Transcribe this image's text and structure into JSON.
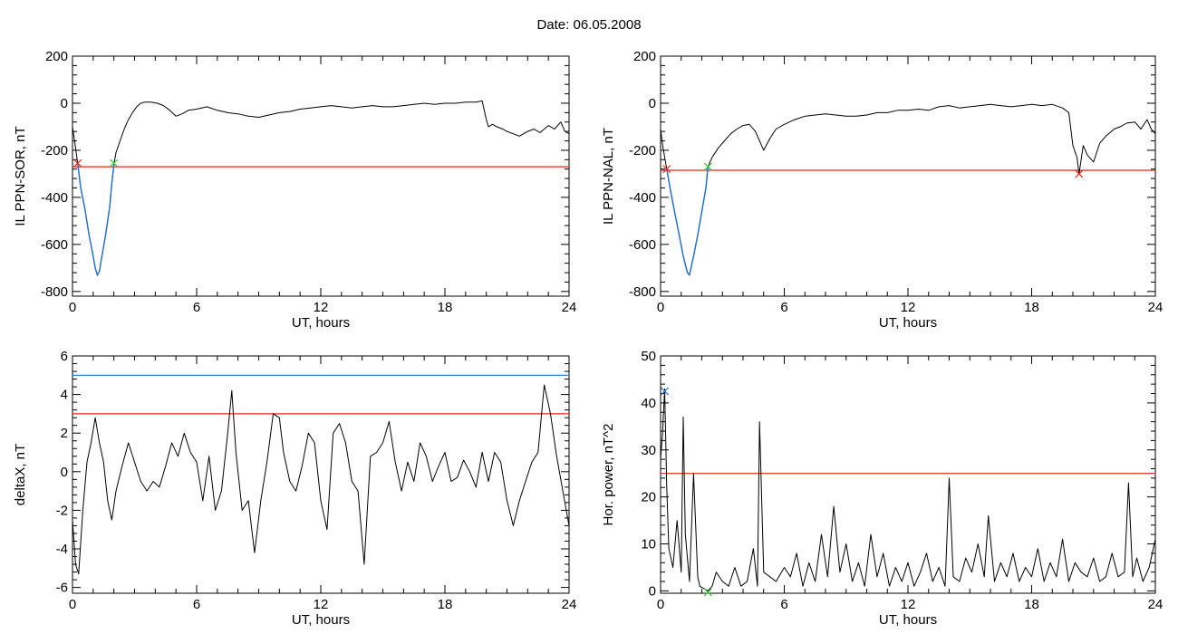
{
  "figure": {
    "title": "Date:  06.05.2008"
  },
  "colors": {
    "trace": "#000000",
    "threshold": "#e8251f",
    "blue": "#1f6fd1",
    "green": "#33cc33",
    "background": "#ffffff"
  },
  "chart_data": [
    {
      "type": "line",
      "ylabel": "IL PPN-SOR, nT",
      "xlabel": "UT, hours",
      "xlim": [
        0,
        24
      ],
      "ylim": [
        -820,
        200
      ],
      "xticks": [
        0,
        6,
        12,
        18,
        24
      ],
      "xtick_labels": [
        "0",
        "6",
        "12",
        "18",
        "24"
      ],
      "yticks": [
        200,
        0,
        -200,
        -400,
        -600,
        -800
      ],
      "ytick_labels": [
        "200",
        "0",
        "-200",
        "-400",
        "-600",
        "-800"
      ],
      "grid": false,
      "threshold": {
        "y": -270,
        "color": "#e8251f"
      },
      "highlight": {
        "x_range": [
          0.25,
          2.0
        ],
        "color": "#1f6fd1"
      },
      "markers": [
        {
          "x": 0.25,
          "y": -255,
          "color": "#e8251f"
        },
        {
          "x": 2.0,
          "y": -255,
          "color": "#33cc33"
        }
      ],
      "series": [
        {
          "x": [
            0,
            0.1,
            0.25,
            0.4,
            0.6,
            0.8,
            1.0,
            1.1,
            1.2,
            1.3,
            1.4,
            1.5,
            1.6,
            1.7,
            1.8,
            1.9,
            2.0,
            2.1,
            2.3,
            2.5,
            2.7,
            2.9,
            3.1,
            3.3,
            3.5,
            3.8,
            4.1,
            4.4,
            4.7,
            5.0,
            5.3,
            5.6,
            6.0,
            6.5,
            7.0,
            7.5,
            8.0,
            8.5,
            9.0,
            9.5,
            10.0,
            10.5,
            11.0,
            11.5,
            12.0,
            12.5,
            13.0,
            13.5,
            14.0,
            14.5,
            15.0,
            15.5,
            16.0,
            16.5,
            17.0,
            17.5,
            18.0,
            18.5,
            19.0,
            19.5,
            19.8,
            20.0,
            20.1,
            20.3,
            20.5,
            20.8,
            21.0,
            21.3,
            21.6,
            22.0,
            22.3,
            22.6,
            23.0,
            23.3,
            23.6,
            23.8,
            24.0
          ],
          "y": [
            -100,
            -160,
            -255,
            -360,
            -450,
            -560,
            -650,
            -700,
            -730,
            -715,
            -660,
            -610,
            -560,
            -500,
            -440,
            -340,
            -260,
            -210,
            -160,
            -110,
            -70,
            -40,
            -15,
            0,
            5,
            5,
            0,
            -10,
            -30,
            -55,
            -45,
            -30,
            -25,
            -15,
            -30,
            -40,
            -45,
            -55,
            -60,
            -50,
            -40,
            -35,
            -25,
            -20,
            -15,
            -10,
            -15,
            -20,
            -15,
            -10,
            -15,
            -15,
            -10,
            -5,
            0,
            -5,
            0,
            0,
            5,
            5,
            10,
            -70,
            -100,
            -90,
            -100,
            -110,
            -120,
            -130,
            -140,
            -120,
            -110,
            -125,
            -95,
            -110,
            -80,
            -120,
            -130
          ]
        }
      ]
    },
    {
      "type": "line",
      "ylabel": "IL PPN-NAL, nT",
      "xlabel": "UT, hours",
      "xlim": [
        0,
        24
      ],
      "ylim": [
        -820,
        200
      ],
      "xticks": [
        0,
        6,
        12,
        18,
        24
      ],
      "xtick_labels": [
        "0",
        "6",
        "12",
        "18",
        "24"
      ],
      "yticks": [
        200,
        0,
        -200,
        -400,
        -600,
        -800
      ],
      "ytick_labels": [
        "200",
        "0",
        "-200",
        "-400",
        "-600",
        "-800"
      ],
      "grid": false,
      "threshold": {
        "y": -285,
        "color": "#e8251f"
      },
      "highlight": {
        "x_range": [
          0.3,
          2.3
        ],
        "color": "#1f6fd1"
      },
      "markers": [
        {
          "x": 0.3,
          "y": -280,
          "color": "#e8251f"
        },
        {
          "x": 2.3,
          "y": -270,
          "color": "#33cc33"
        },
        {
          "x": 20.3,
          "y": -300,
          "color": "#e8251f"
        }
      ],
      "series": [
        {
          "x": [
            0,
            0.1,
            0.3,
            0.5,
            0.7,
            0.9,
            1.1,
            1.3,
            1.4,
            1.5,
            1.6,
            1.8,
            2.0,
            2.2,
            2.3,
            2.5,
            2.8,
            3.1,
            3.4,
            3.7,
            4.0,
            4.3,
            4.6,
            5.0,
            5.3,
            5.6,
            6.0,
            6.5,
            7.0,
            7.5,
            8.0,
            8.5,
            9.0,
            9.5,
            10.0,
            10.5,
            11.0,
            11.5,
            12.0,
            12.5,
            13.0,
            13.5,
            14.0,
            14.5,
            15.0,
            15.5,
            16.0,
            16.5,
            17.0,
            17.5,
            18.0,
            18.5,
            19.0,
            19.5,
            19.8,
            20.0,
            20.2,
            20.3,
            20.5,
            20.7,
            21.0,
            21.3,
            21.6,
            22.0,
            22.3,
            22.6,
            23.0,
            23.3,
            23.6,
            23.8,
            24.0
          ],
          "y": [
            -110,
            -180,
            -280,
            -380,
            -470,
            -560,
            -650,
            -720,
            -730,
            -690,
            -650,
            -560,
            -460,
            -360,
            -270,
            -230,
            -190,
            -160,
            -130,
            -110,
            -95,
            -90,
            -120,
            -200,
            -150,
            -110,
            -90,
            -70,
            -55,
            -50,
            -45,
            -50,
            -55,
            -55,
            -50,
            -40,
            -40,
            -30,
            -30,
            -25,
            -30,
            -15,
            -10,
            -20,
            -15,
            -10,
            -5,
            -10,
            -15,
            -10,
            -5,
            -10,
            -5,
            -20,
            -40,
            -180,
            -230,
            -300,
            -180,
            -220,
            -250,
            -170,
            -140,
            -110,
            -100,
            -85,
            -80,
            -110,
            -70,
            -110,
            -130
          ]
        }
      ]
    },
    {
      "type": "line",
      "ylabel": "deltaX, nT",
      "xlabel": "UT, hours",
      "xlim": [
        0,
        24
      ],
      "ylim": [
        -6.3,
        6
      ],
      "xticks": [
        0,
        6,
        12,
        18,
        24
      ],
      "xtick_labels": [
        "0",
        "6",
        "12",
        "18",
        "24"
      ],
      "yticks": [
        6,
        4,
        2,
        0,
        -2,
        -4,
        -6
      ],
      "ytick_labels": [
        "6",
        "4",
        "2",
        "0",
        "-2",
        "-4",
        "-6"
      ],
      "grid": false,
      "hlines": [
        {
          "y": 5.0,
          "color": "#1f6fd1"
        },
        {
          "y": 3.0,
          "color": "#e8251f"
        }
      ],
      "series": [
        {
          "x": [
            0,
            0.15,
            0.3,
            0.5,
            0.7,
            0.9,
            1.1,
            1.3,
            1.5,
            1.7,
            1.9,
            2.1,
            2.4,
            2.7,
            3.0,
            3.3,
            3.6,
            3.9,
            4.2,
            4.5,
            4.8,
            5.1,
            5.4,
            5.7,
            6.0,
            6.3,
            6.6,
            6.9,
            7.2,
            7.5,
            7.7,
            7.9,
            8.2,
            8.5,
            8.8,
            9.1,
            9.4,
            9.7,
            10.0,
            10.2,
            10.5,
            10.8,
            11.1,
            11.4,
            11.7,
            12.0,
            12.3,
            12.6,
            12.9,
            13.2,
            13.5,
            13.8,
            14.1,
            14.4,
            14.7,
            15.0,
            15.3,
            15.6,
            15.9,
            16.2,
            16.5,
            16.8,
            17.1,
            17.4,
            17.7,
            18.0,
            18.3,
            18.6,
            18.9,
            19.2,
            19.5,
            19.8,
            20.1,
            20.4,
            20.7,
            21.0,
            21.3,
            21.6,
            21.9,
            22.2,
            22.5,
            22.8,
            23.1,
            23.4,
            23.7,
            24.0
          ],
          "y": [
            -2.5,
            -4.8,
            -5.3,
            -2.0,
            0.5,
            1.5,
            2.8,
            1.5,
            0.5,
            -1.5,
            -2.5,
            -1.0,
            0.3,
            1.5,
            0.5,
            -0.5,
            -1.0,
            -0.5,
            -0.8,
            0.3,
            1.5,
            0.8,
            2.0,
            1.0,
            0.5,
            -1.5,
            0.8,
            -2.0,
            -1.0,
            2.0,
            4.2,
            1.0,
            -2.0,
            -1.5,
            -4.2,
            -1.5,
            0.5,
            3.0,
            2.8,
            1.0,
            -0.5,
            -1.0,
            0.3,
            2.0,
            1.5,
            -1.5,
            -3.0,
            2.0,
            2.5,
            1.5,
            -0.5,
            -1.0,
            -4.8,
            0.8,
            1.0,
            1.5,
            2.6,
            0.5,
            -1.0,
            0.5,
            -0.5,
            1.5,
            0.8,
            -0.5,
            0.3,
            1.0,
            -0.5,
            -0.3,
            0.6,
            0.0,
            -0.8,
            1.0,
            -0.5,
            1.0,
            0.5,
            -1.5,
            -2.8,
            -1.5,
            -0.5,
            0.5,
            1.0,
            4.5,
            3.0,
            0.8,
            -1.0,
            -2.8
          ]
        }
      ]
    },
    {
      "type": "line",
      "ylabel": "Hor. power, nT^2",
      "xlabel": "UT, hours",
      "xlim": [
        0,
        24
      ],
      "ylim": [
        -0.5,
        50
      ],
      "xticks": [
        0,
        6,
        12,
        18,
        24
      ],
      "xtick_labels": [
        "0",
        "6",
        "12",
        "18",
        "24"
      ],
      "yticks": [
        50,
        40,
        30,
        20,
        10,
        0
      ],
      "ytick_labels": [
        "50",
        "40",
        "30",
        "20",
        "10",
        "0"
      ],
      "grid": false,
      "threshold": {
        "y": 25,
        "color": "#e8251f"
      },
      "markers": [
        {
          "x": 0.2,
          "y": 42.5,
          "color": "#1f6fd1"
        },
        {
          "x": 2.3,
          "y": -0.3,
          "color": "#33cc33"
        }
      ],
      "series": [
        {
          "x": [
            0,
            0.1,
            0.2,
            0.3,
            0.4,
            0.6,
            0.8,
            1.0,
            1.1,
            1.2,
            1.4,
            1.6,
            1.8,
            1.9,
            2.1,
            2.3,
            2.5,
            2.7,
            3.0,
            3.3,
            3.6,
            3.9,
            4.2,
            4.5,
            4.7,
            4.8,
            5.0,
            5.3,
            5.6,
            6.0,
            6.3,
            6.6,
            6.9,
            7.2,
            7.5,
            7.8,
            8.1,
            8.4,
            8.7,
            9.0,
            9.3,
            9.6,
            9.9,
            10.2,
            10.5,
            10.8,
            11.1,
            11.4,
            11.7,
            12.0,
            12.3,
            12.6,
            12.9,
            13.2,
            13.5,
            13.8,
            14.0,
            14.2,
            14.5,
            14.8,
            15.1,
            15.4,
            15.7,
            15.9,
            16.2,
            16.5,
            16.8,
            17.1,
            17.4,
            17.7,
            18.0,
            18.3,
            18.6,
            18.9,
            19.2,
            19.5,
            19.8,
            20.1,
            20.4,
            20.7,
            21.0,
            21.3,
            21.6,
            21.9,
            22.2,
            22.5,
            22.7,
            22.9,
            23.1,
            23.4,
            23.7,
            24.0
          ],
          "y": [
            28,
            34,
            43,
            22,
            9,
            5,
            15,
            4,
            37,
            12,
            2,
            25,
            3,
            1,
            0.5,
            0,
            1,
            4,
            2,
            1,
            5,
            1,
            2,
            9,
            1,
            36,
            4,
            3,
            2,
            5,
            3,
            8,
            1,
            6,
            2,
            12,
            3,
            18,
            4,
            10,
            2,
            6,
            1,
            12,
            3,
            8,
            1,
            5,
            2,
            6,
            1,
            4,
            8,
            2,
            5,
            1,
            24,
            3,
            2,
            7,
            4,
            10,
            3,
            16,
            2,
            6,
            3,
            8,
            2,
            5,
            3,
            9,
            2,
            6,
            3,
            11,
            2,
            6,
            4,
            3,
            7,
            2,
            3,
            8,
            3,
            4,
            23,
            3,
            7,
            2,
            5,
            11
          ]
        }
      ]
    }
  ]
}
